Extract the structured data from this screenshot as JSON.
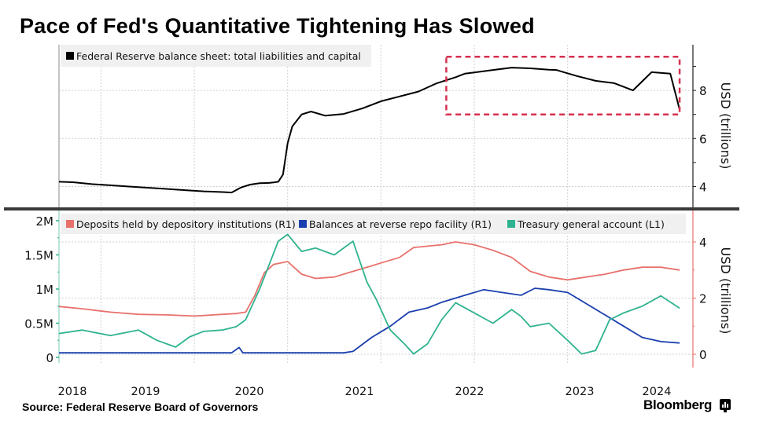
{
  "title": "Pace of Fed's Quantitative Tightening Has Slowed",
  "source": "Source: Federal Reserve Board of Governors",
  "brand": "Bloomberg",
  "brand_icon": "bloomberg-terminal-icon",
  "chart_data": [
    {
      "type": "line",
      "panel": "top",
      "title": "",
      "xlabel": "",
      "ylabel": "USD (trillions)",
      "y_axis_side": "right",
      "ylim": [
        3.1,
        9.9
      ],
      "yticks": [
        4,
        6,
        8
      ],
      "xlim": [
        2017.85,
        2024.55
      ],
      "xticks": [
        2018,
        2019,
        2020,
        2021,
        2022,
        2023,
        2024
      ],
      "grid": true,
      "legend_position": "top-left",
      "series": [
        {
          "name": "Federal Reserve balance sheet: total liabilities and capital",
          "color": "#000000",
          "x": [
            2017.85,
            2018.0,
            2018.2,
            2018.4,
            2018.6,
            2018.8,
            2019.0,
            2019.2,
            2019.4,
            2019.6,
            2019.7,
            2019.8,
            2019.9,
            2020.0,
            2020.1,
            2020.15,
            2020.2,
            2020.25,
            2020.3,
            2020.35,
            2020.45,
            2020.55,
            2020.7,
            2020.9,
            2021.1,
            2021.3,
            2021.5,
            2021.7,
            2021.9,
            2022.1,
            2022.2,
            2022.3,
            2022.5,
            2022.7,
            2022.9,
            2023.1,
            2023.18,
            2023.22,
            2023.4,
            2023.6,
            2023.8,
            2024.0,
            2024.2,
            2024.4,
            2024.5
          ],
          "y": [
            4.2,
            4.18,
            4.1,
            4.05,
            4.0,
            3.95,
            3.9,
            3.85,
            3.8,
            3.77,
            3.75,
            3.96,
            4.08,
            4.14,
            4.15,
            4.17,
            4.2,
            4.5,
            5.8,
            6.5,
            7.0,
            7.12,
            6.95,
            7.02,
            7.25,
            7.55,
            7.75,
            7.95,
            8.3,
            8.55,
            8.7,
            8.75,
            8.85,
            8.95,
            8.92,
            8.86,
            8.85,
            8.8,
            8.6,
            8.4,
            8.3,
            8.0,
            8.76,
            8.7,
            7.2
          ],
          "note": "approximate daily trace; peak ~8.96 in early 2022, SVB spike March 2023"
        }
      ],
      "annotations": [
        {
          "type": "dashed-rectangle",
          "color": "#d6304f",
          "x_range": [
            2022.0,
            2024.5
          ],
          "y_range": [
            7.0,
            9.4
          ],
          "label": ""
        }
      ]
    },
    {
      "type": "line",
      "panel": "bottom",
      "title": "",
      "xlabel": "",
      "ylabel_left": "",
      "ylabel_right": "USD (trillions)",
      "ylim_left": [
        -0.05,
        2.0
      ],
      "yticks_left_labels": [
        "0",
        "0.5M",
        "1M",
        "1.5M",
        "2M"
      ],
      "yticks_left": [
        0,
        0.5,
        1.0,
        1.5,
        2.0
      ],
      "ylim_right": [
        -0.05,
        5.0
      ],
      "yticks_right": [
        0,
        2,
        4
      ],
      "xlim": [
        2017.85,
        2024.55
      ],
      "xticks": [
        2018,
        2019,
        2020,
        2021,
        2022,
        2023,
        2024
      ],
      "grid": true,
      "legend_position": "top-left",
      "series": [
        {
          "name": "Deposits held by depository institutions (R1)",
          "axis": "right",
          "color": "#e8716c",
          "x": [
            2017.85,
            2018.1,
            2018.4,
            2018.7,
            2019.0,
            2019.3,
            2019.6,
            2019.75,
            2019.85,
            2019.95,
            2020.05,
            2020.15,
            2020.3,
            2020.45,
            2020.6,
            2020.8,
            2021.0,
            2021.15,
            2021.3,
            2021.5,
            2021.65,
            2021.8,
            2021.95,
            2022.1,
            2022.3,
            2022.5,
            2022.7,
            2022.9,
            2023.0,
            2023.1,
            2023.3,
            2023.5,
            2023.7,
            2023.9,
            2024.1,
            2024.3,
            2024.5
          ],
          "y": [
            1.7,
            1.62,
            1.5,
            1.42,
            1.4,
            1.36,
            1.42,
            1.45,
            1.5,
            2.1,
            2.9,
            3.2,
            3.3,
            2.85,
            2.7,
            2.75,
            2.95,
            3.1,
            3.25,
            3.45,
            3.8,
            3.85,
            3.9,
            4.0,
            3.9,
            3.7,
            3.45,
            2.95,
            2.85,
            2.75,
            2.65,
            2.75,
            2.85,
            3.0,
            3.1,
            3.1,
            3.0
          ]
        },
        {
          "name": "Balances at reverse repo facility (R1)",
          "axis": "right",
          "color": "#1b3fae",
          "x": [
            2017.85,
            2018.2,
            2018.6,
            2019.0,
            2019.4,
            2019.7,
            2019.78,
            2019.82,
            2020.2,
            2020.6,
            2020.9,
            2021.0,
            2021.2,
            2021.4,
            2021.6,
            2021.8,
            2021.95,
            2022.2,
            2022.4,
            2022.6,
            2022.8,
            2022.95,
            2023.1,
            2023.3,
            2023.5,
            2023.7,
            2023.9,
            2024.1,
            2024.3,
            2024.5
          ],
          "y": [
            0.05,
            0.05,
            0.05,
            0.05,
            0.05,
            0.05,
            0.24,
            0.05,
            0.05,
            0.05,
            0.05,
            0.1,
            0.6,
            1.0,
            1.5,
            1.65,
            1.85,
            2.1,
            2.3,
            2.2,
            2.1,
            2.35,
            2.3,
            2.2,
            1.8,
            1.4,
            1.0,
            0.6,
            0.45,
            0.4
          ]
        },
        {
          "name": "Treasury general account (L1)",
          "axis": "left",
          "color": "#2fb38f",
          "x": [
            2017.85,
            2018.1,
            2018.4,
            2018.7,
            2018.9,
            2019.1,
            2019.25,
            2019.4,
            2019.6,
            2019.75,
            2019.85,
            2020.0,
            2020.1,
            2020.2,
            2020.3,
            2020.45,
            2020.6,
            2020.8,
            2021.0,
            2021.15,
            2021.25,
            2021.4,
            2021.55,
            2021.65,
            2021.8,
            2021.95,
            2022.1,
            2022.3,
            2022.5,
            2022.7,
            2022.8,
            2022.9,
            2023.1,
            2023.3,
            2023.45,
            2023.6,
            2023.75,
            2023.9,
            2024.1,
            2024.3,
            2024.5
          ],
          "y": [
            0.35,
            0.4,
            0.32,
            0.4,
            0.25,
            0.15,
            0.3,
            0.38,
            0.4,
            0.45,
            0.55,
            1.0,
            1.35,
            1.7,
            1.8,
            1.55,
            1.6,
            1.5,
            1.7,
            1.1,
            0.85,
            0.4,
            0.2,
            0.05,
            0.2,
            0.55,
            0.8,
            0.65,
            0.5,
            0.7,
            0.6,
            0.45,
            0.5,
            0.25,
            0.05,
            0.1,
            0.55,
            0.65,
            0.75,
            0.9,
            0.72
          ]
        }
      ]
    }
  ]
}
